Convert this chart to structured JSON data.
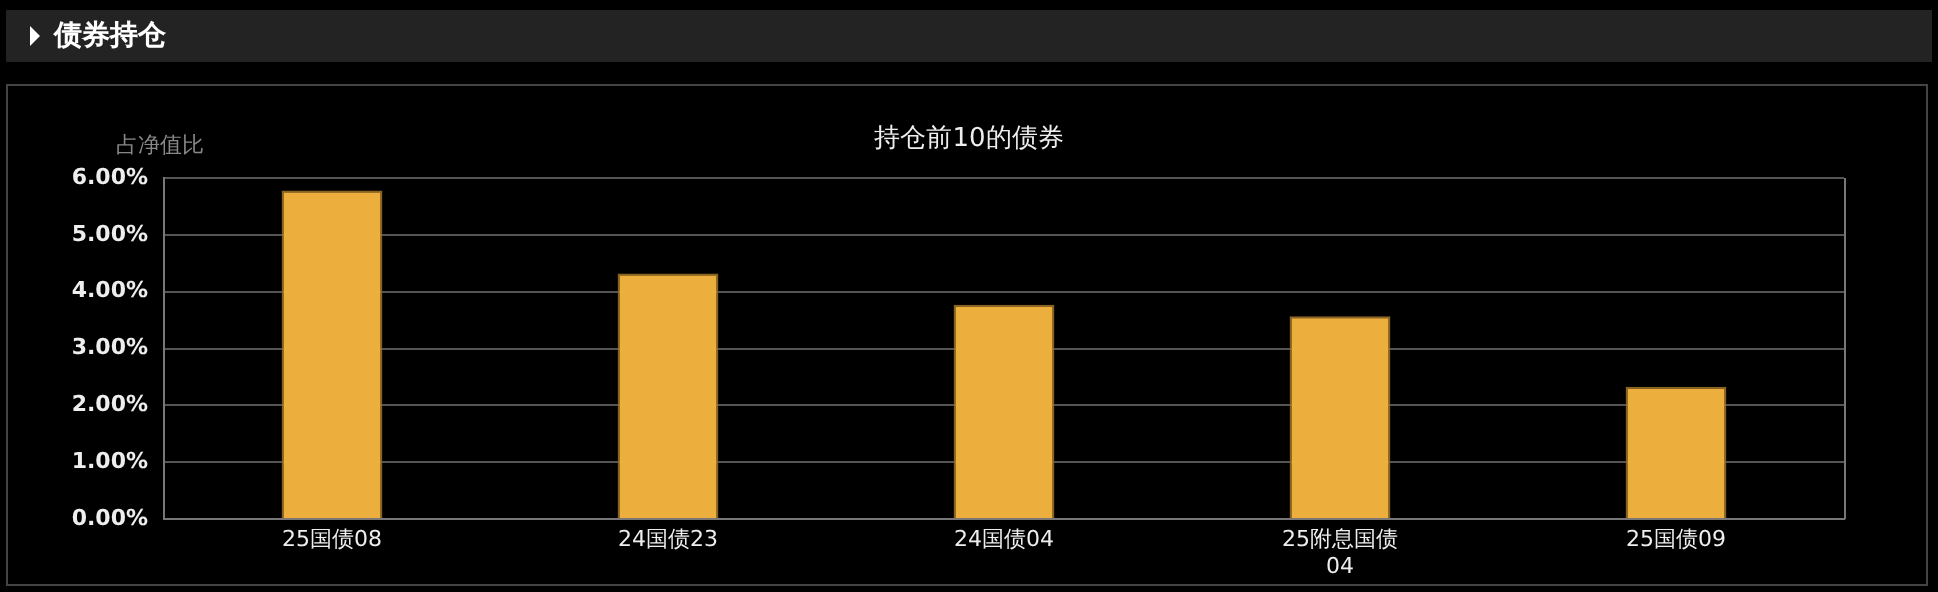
{
  "chart_data": {
    "type": "bar",
    "title": "持仓前10的债券",
    "ylabel": "占净值比",
    "annotations": [
      "债券持仓"
    ],
    "categories": [
      "25国债08",
      "24国债23",
      "24国债04",
      "25附息国债04",
      "25国债09"
    ],
    "values": [
      5.78,
      4.32,
      3.77,
      3.57,
      2.33
    ],
    "color": "#ecae3c",
    "ylim": [
      0,
      6
    ],
    "yticks": [
      {
        "value": 0,
        "label": "0.00%"
      },
      {
        "value": 1,
        "label": "1.00%"
      },
      {
        "value": 2,
        "label": "2.00%"
      },
      {
        "value": 3,
        "label": "3.00%"
      },
      {
        "value": 4,
        "label": "4.00%"
      },
      {
        "value": 5,
        "label": "5.00%"
      },
      {
        "value": 6,
        "label": "6.00%"
      }
    ],
    "grid": "y"
  }
}
